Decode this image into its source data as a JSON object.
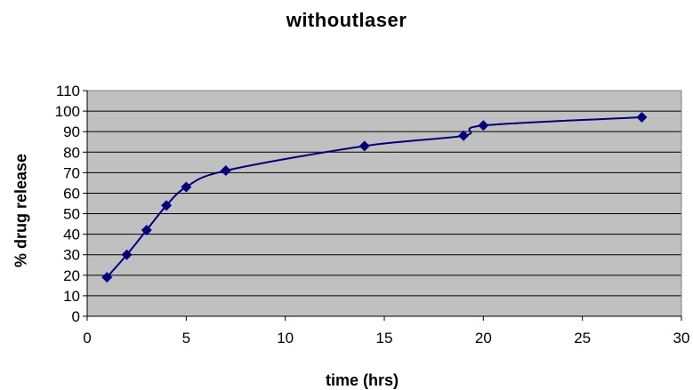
{
  "chart_data": {
    "type": "line",
    "title": "withoutlaser",
    "xlabel": "time (hrs)",
    "ylabel": "% drug release",
    "xlim": [
      0,
      30
    ],
    "ylim": [
      0,
      110
    ],
    "xticks": [
      0,
      5,
      10,
      15,
      20,
      25,
      30
    ],
    "yticks": [
      0,
      10,
      20,
      30,
      40,
      50,
      60,
      70,
      80,
      90,
      100,
      110
    ],
    "grid": "horizontal",
    "plot_background": "#c0c0c0",
    "line_color": "#000080",
    "series": [
      {
        "x": [
          1,
          2,
          3,
          4,
          5,
          7,
          14,
          19,
          20,
          28
        ],
        "values": [
          19,
          30,
          42,
          54,
          63,
          71,
          83,
          88,
          93,
          97
        ]
      }
    ]
  }
}
